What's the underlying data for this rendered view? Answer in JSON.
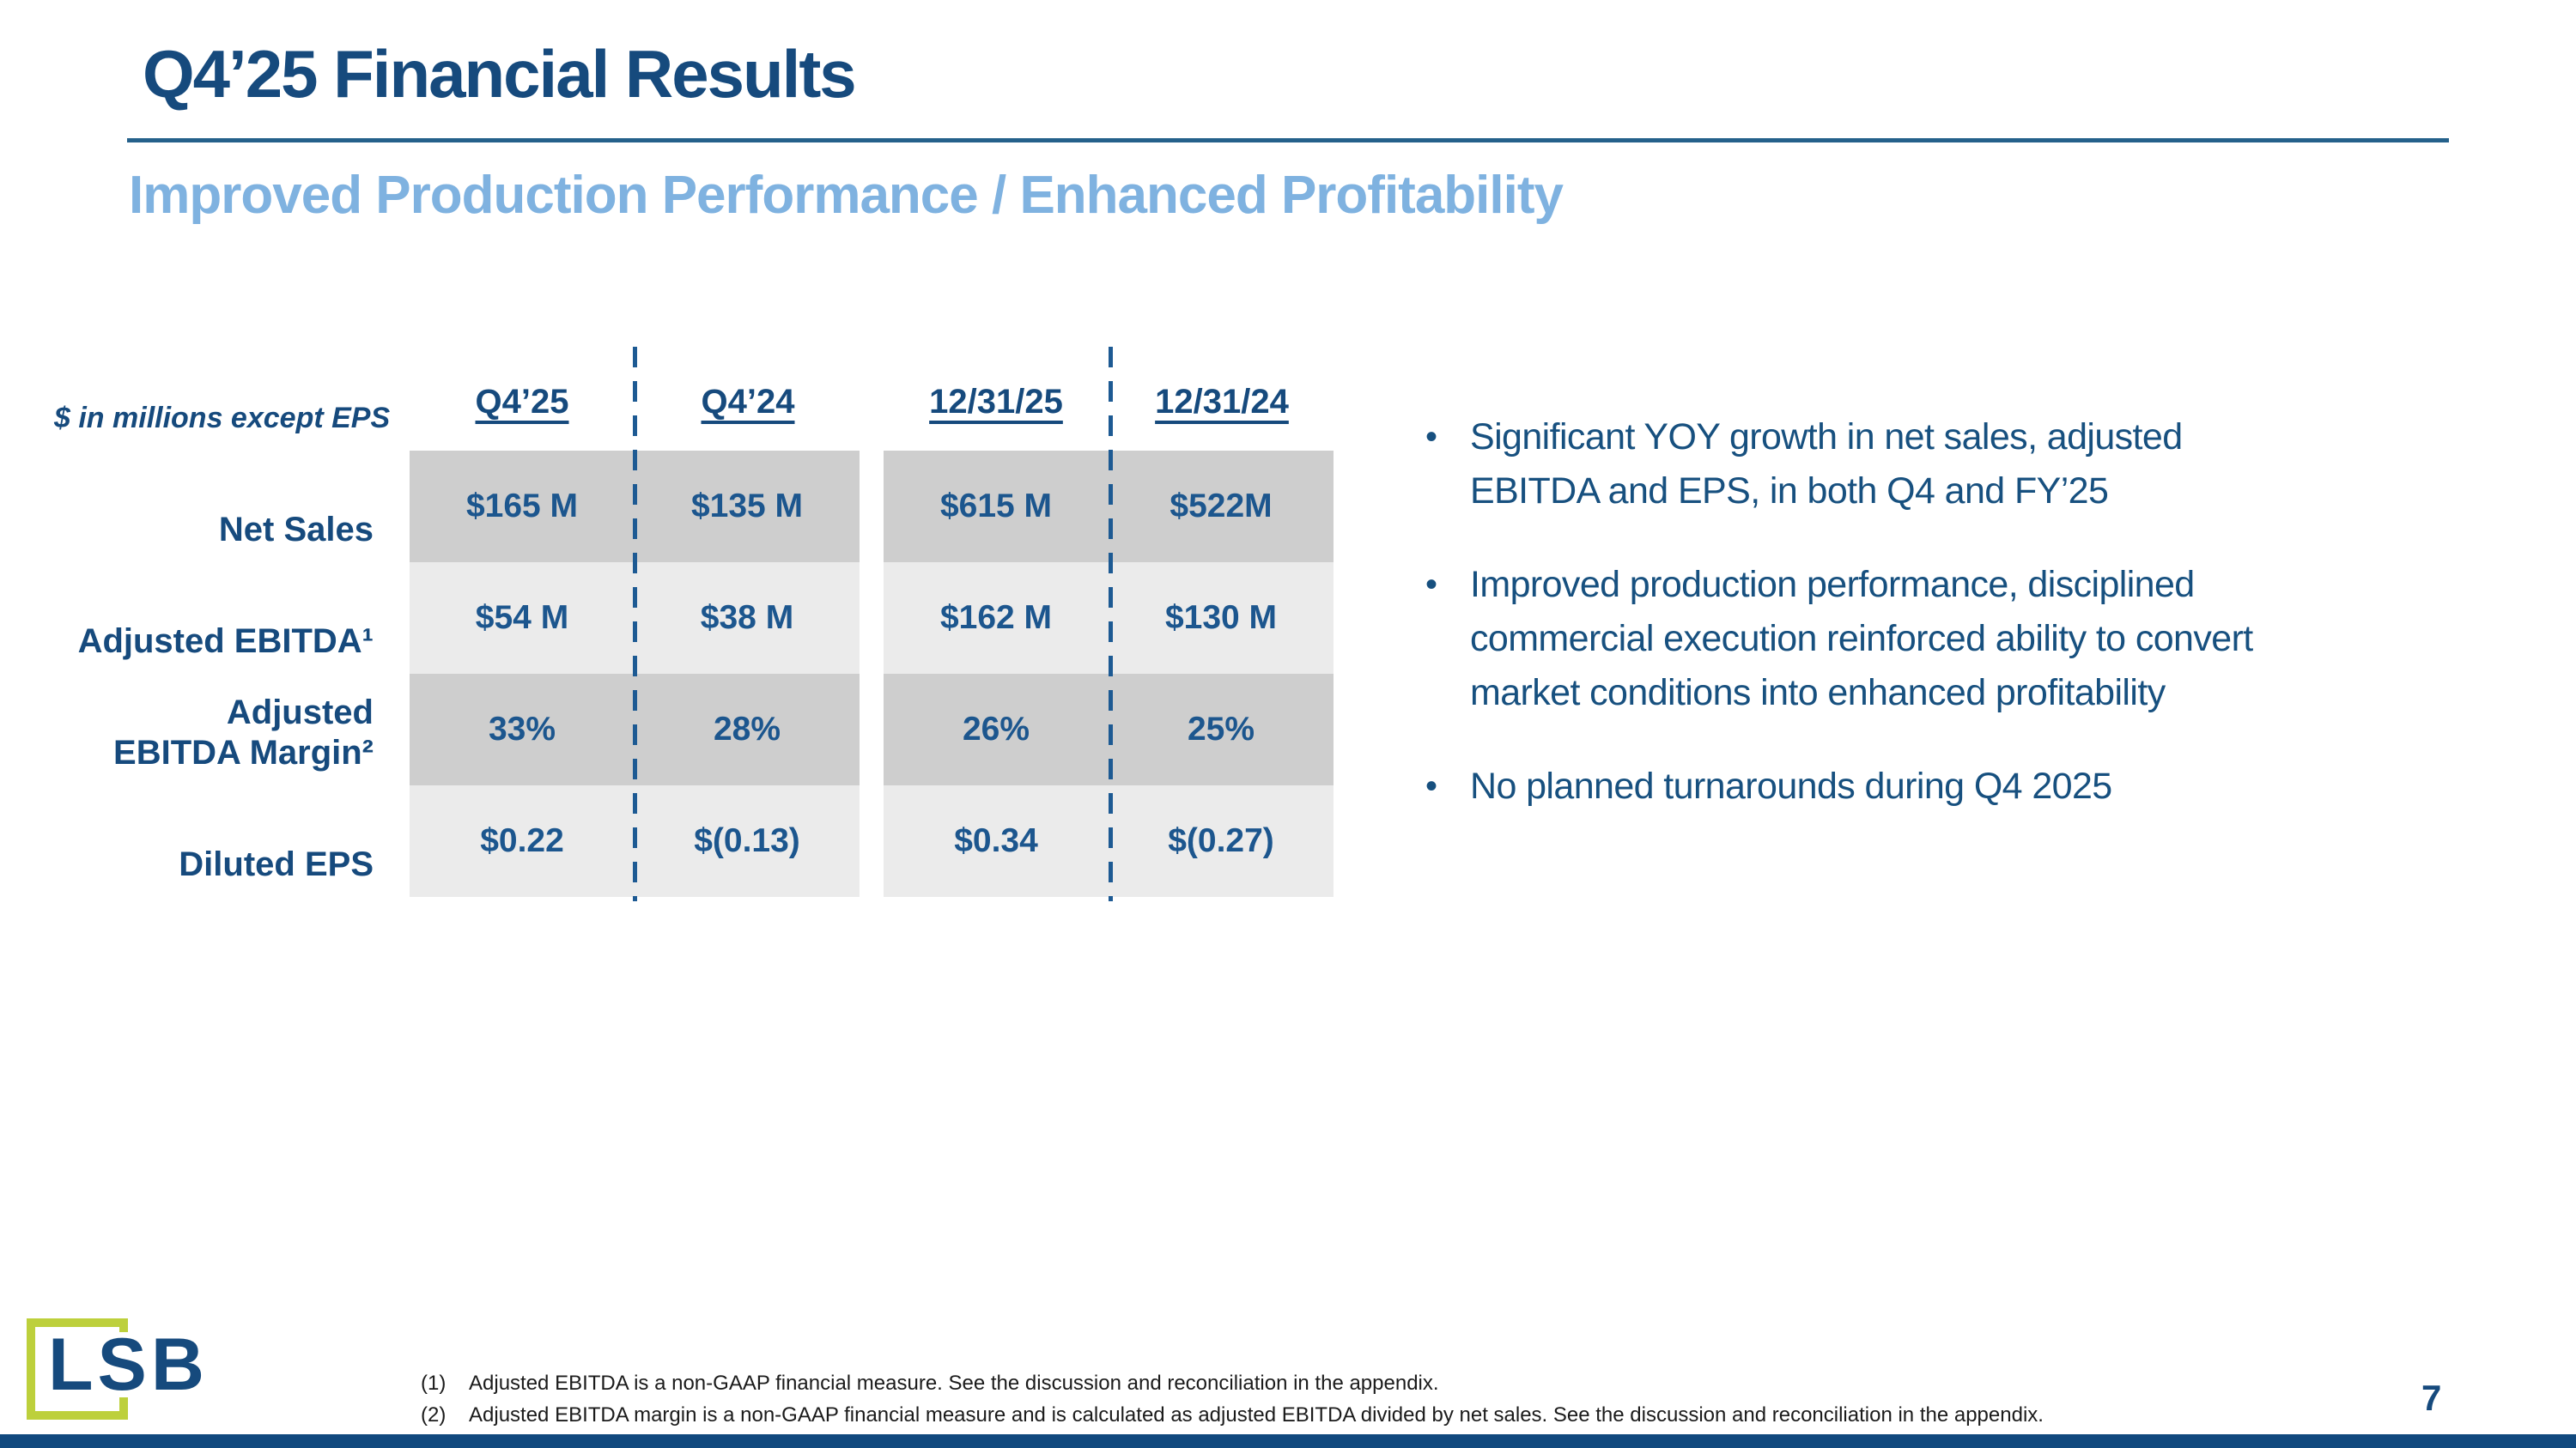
{
  "slide": {
    "title": "Q4’25 Financial Results",
    "subtitle": "Improved Production Performance / Enhanced Profitability",
    "page_number": "7"
  },
  "table": {
    "units_note": "$ in millions except EPS",
    "columns": [
      "Q4’25",
      "Q4’24",
      "12/31/25",
      "12/31/24"
    ],
    "rows": [
      {
        "label": "Net Sales",
        "values": [
          "$165 M",
          "$135 M",
          "$615 M",
          "$522M"
        ]
      },
      {
        "label": "Adjusted EBITDA¹",
        "values": [
          "$54 M",
          "$38 M",
          "$162 M",
          "$130 M"
        ]
      },
      {
        "label": "Adjusted\nEBITDA Margin²",
        "values": [
          "33%",
          "28%",
          "26%",
          "25%"
        ]
      },
      {
        "label": "Diluted EPS",
        "values": [
          "$0.22",
          "$(0.13)",
          "$0.34",
          "$(0.27)"
        ]
      }
    ]
  },
  "bullets": [
    "Significant YOY growth in net sales, adjusted\nEBITDA and EPS, in both Q4 and FY’25",
    "Improved production performance, disciplined\ncommercial execution reinforced ability to convert\nmarket conditions into enhanced profitability",
    "No planned turnarounds during Q4 2025"
  ],
  "glyphs": {
    "bullet": "•"
  },
  "footnotes": [
    {
      "marker": "(1)",
      "text": "Adjusted EBITDA is a non-GAAP financial measure.  See the discussion and reconciliation in the appendix."
    },
    {
      "marker": "(2)",
      "text": "Adjusted EBITDA margin is a non-GAAP financial measure and is calculated as adjusted EBITDA divided by net sales. See the discussion and reconciliation in the appendix."
    }
  ],
  "logo": {
    "text": "LSB"
  },
  "colors": {
    "navy_text": "#164a7d",
    "value_navy": "#1c568e",
    "light_blue_subtitle": "#7fb2e0",
    "title_rule": "#25618b",
    "row_dark_gray": "#cecece",
    "row_light_gray": "#ebebeb",
    "dashed_line": "#1d5a93",
    "bottom_bar": "#11497e",
    "logo_green": "#bdd03c",
    "footnote_text": "#1b1b1b"
  }
}
